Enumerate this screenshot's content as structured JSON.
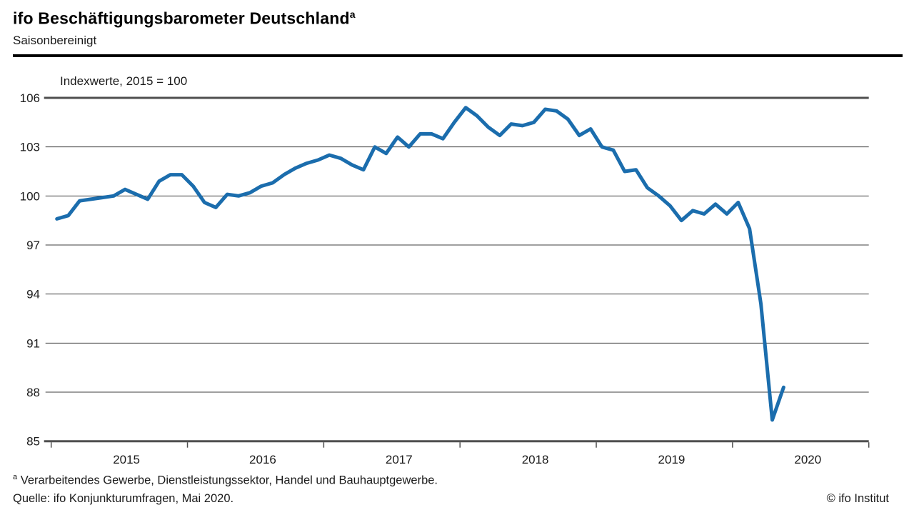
{
  "header": {
    "title": "ifo Beschäftigungsbarometer Deutschland",
    "title_superscript": "a",
    "subtitle": "Saisonbereinigt"
  },
  "chart_data": {
    "type": "line",
    "title": "ifo Beschäftigungsbarometer Deutschland, saisonbereinigt",
    "unit_label": "Indexwerte, 2015 = 100",
    "ylim": [
      85,
      106
    ],
    "y_ticks": [
      85,
      88,
      91,
      94,
      97,
      100,
      103,
      106
    ],
    "x_years": [
      "2015",
      "2016",
      "2017",
      "2018",
      "2019",
      "2020"
    ],
    "grid": true,
    "legend_position": "none",
    "line_color": "#1b6dad",
    "series": [
      {
        "name": "ifo Beschäftigungsbarometer",
        "start_year": 2015,
        "points_per_year": 12,
        "values": [
          98.6,
          98.8,
          99.7,
          99.8,
          99.9,
          100.0,
          100.4,
          100.1,
          99.8,
          100.9,
          101.3,
          101.3,
          100.6,
          99.6,
          99.3,
          100.1,
          100.0,
          100.2,
          100.6,
          100.8,
          101.3,
          101.7,
          102.0,
          102.2,
          102.5,
          102.3,
          101.9,
          101.6,
          103.0,
          102.6,
          103.6,
          103.0,
          103.8,
          103.8,
          103.5,
          104.5,
          105.4,
          104.9,
          104.2,
          103.7,
          104.4,
          104.3,
          104.5,
          105.3,
          105.2,
          104.7,
          103.7,
          104.1,
          103.0,
          102.8,
          101.5,
          101.6,
          100.5,
          100.0,
          99.4,
          98.5,
          99.1,
          98.9,
          99.5,
          98.9,
          99.6,
          98.0,
          93.4,
          86.3,
          88.3
        ]
      }
    ]
  },
  "footer": {
    "footnote_marker": "a",
    "footnote": "Verarbeitendes Gewerbe, Dienstleistungssektor, Handel und Bauhauptgewerbe.",
    "source": "Quelle: ifo Konjunkturumfragen, Mai 2020.",
    "copyright": "© ifo Institut"
  }
}
